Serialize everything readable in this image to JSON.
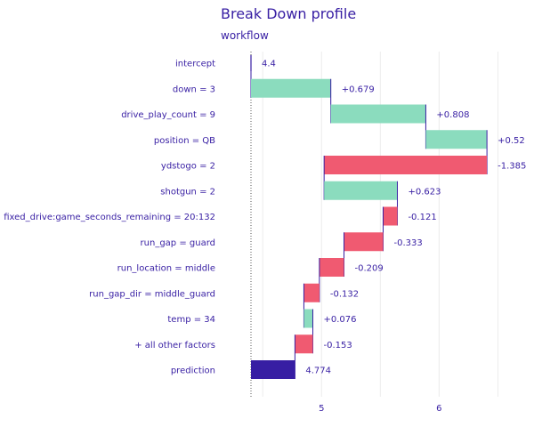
{
  "chart_data": {
    "type": "bar",
    "subtype": "break-down",
    "title": "Break Down profile",
    "subtitle": "workflow",
    "xlabel": "",
    "ylabel": "",
    "xlim": [
      4.4,
      6.6
    ],
    "xticks": [
      "5",
      "6"
    ],
    "xtick_values": [
      5,
      6
    ],
    "grid": true,
    "colors": {
      "positive": "#8bdcbe",
      "negative": "#f05a71",
      "prediction": "#371ea3",
      "connector": "#371ea3",
      "text": "#371ea3"
    },
    "bars": [
      {
        "variable": "intercept",
        "start": 4.4,
        "end": 4.4,
        "label": "4.4",
        "sign": "X"
      },
      {
        "variable": "down = 3",
        "start": 4.4,
        "end": 5.079,
        "label": "+0.679",
        "sign": "1"
      },
      {
        "variable": "drive_play_count = 9",
        "start": 5.079,
        "end": 5.887,
        "label": "+0.808",
        "sign": "1"
      },
      {
        "variable": "position = QB",
        "start": 5.887,
        "end": 6.407,
        "label": "+0.52",
        "sign": "1"
      },
      {
        "variable": "ydstogo = 2",
        "start": 6.407,
        "end": 5.022,
        "label": "-1.385",
        "sign": "-1"
      },
      {
        "variable": "shotgun = 2",
        "start": 5.022,
        "end": 5.645,
        "label": "+0.623",
        "sign": "1"
      },
      {
        "variable": "fixed_drive:game_seconds_remaining = 20:132",
        "start": 5.645,
        "end": 5.524,
        "label": "-0.121",
        "sign": "-1"
      },
      {
        "variable": "run_gap = guard",
        "start": 5.524,
        "end": 5.191,
        "label": "-0.333",
        "sign": "-1"
      },
      {
        "variable": "run_location = middle",
        "start": 5.191,
        "end": 4.982,
        "label": "-0.209",
        "sign": "-1"
      },
      {
        "variable": "run_gap_dir = middle_guard",
        "start": 4.982,
        "end": 4.85,
        "label": "-0.132",
        "sign": "-1"
      },
      {
        "variable": "temp = 34",
        "start": 4.85,
        "end": 4.926,
        "label": "+0.076",
        "sign": "1"
      },
      {
        "variable": "+ all other factors",
        "start": 4.926,
        "end": 4.774,
        "label": "-0.153",
        "sign": "-1"
      },
      {
        "variable": "prediction",
        "start": 4.4,
        "end": 4.774,
        "label": "4.774",
        "sign": "X"
      }
    ]
  }
}
